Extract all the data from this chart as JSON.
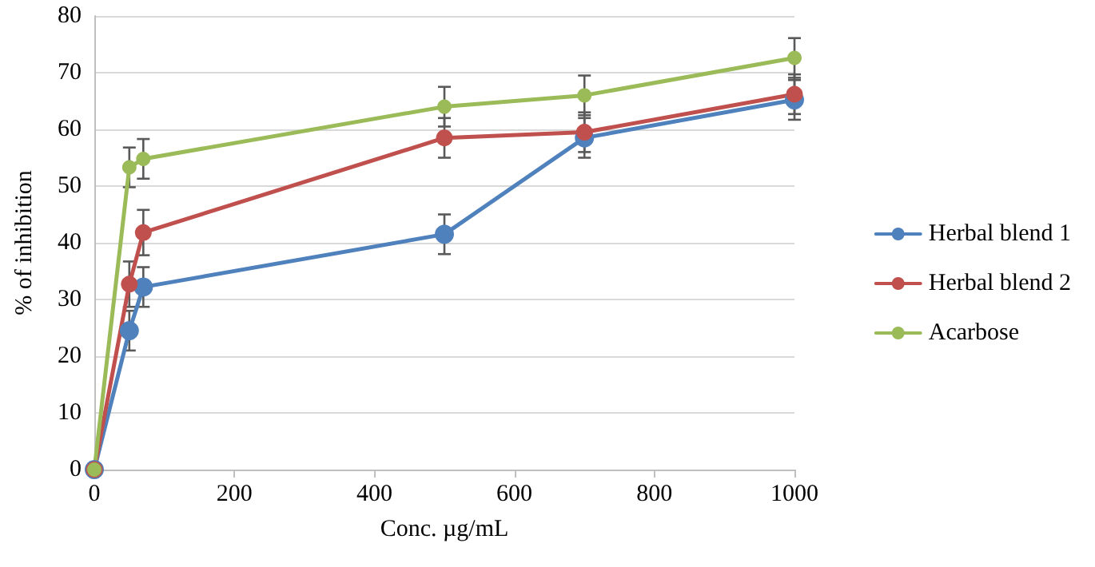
{
  "chart_data": {
    "type": "line",
    "xlabel": "Conc. µg/mL",
    "ylabel": "% of inhibition",
    "x": [
      0,
      50,
      70,
      500,
      700,
      1000
    ],
    "series": [
      {
        "name": "Herbal blend 1",
        "color": "#4f81bd",
        "values": [
          0,
          24.5,
          32.2,
          41.5,
          58.5,
          65.2
        ],
        "errors": [
          null,
          3.5,
          3.5,
          3.5,
          3.5,
          3.5
        ]
      },
      {
        "name": "Herbal blend 2",
        "color": "#c0504d",
        "values": [
          0,
          32.7,
          41.8,
          58.5,
          59.5,
          66.2
        ],
        "errors": [
          null,
          4,
          4,
          3.5,
          3.5,
          3.5
        ]
      },
      {
        "name": "Acarbose",
        "color": "#9bbb59",
        "values": [
          0,
          53.3,
          54.8,
          64,
          66,
          72.6
        ],
        "errors": [
          null,
          3.5,
          3.5,
          3.5,
          3.5,
          3.5
        ]
      }
    ],
    "xlim": [
      0,
      1000
    ],
    "xticks": [
      0,
      200,
      400,
      600,
      800,
      1000
    ],
    "ylim": [
      0,
      80
    ],
    "yticks": [
      0,
      10,
      20,
      30,
      40,
      50,
      60,
      70,
      80
    ],
    "grid": "y",
    "legend": "right",
    "marker": "circle",
    "line_style": "solid"
  }
}
